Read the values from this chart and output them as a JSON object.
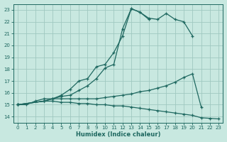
{
  "xlabel": "Humidex (Indice chaleur)",
  "bg_color": "#c8e8e0",
  "grid_color": "#a0c8c0",
  "line_color": "#1e6860",
  "xlim": [
    -0.5,
    23.5
  ],
  "ylim": [
    13.5,
    23.5
  ],
  "yticks": [
    14,
    15,
    16,
    17,
    18,
    19,
    20,
    21,
    22,
    23
  ],
  "xticks": [
    0,
    1,
    2,
    3,
    4,
    5,
    6,
    7,
    8,
    9,
    10,
    11,
    12,
    13,
    14,
    15,
    16,
    17,
    18,
    19,
    20,
    21,
    22,
    23
  ],
  "lines": [
    {
      "x": [
        0,
        1,
        2,
        3,
        4,
        5,
        6,
        7,
        8,
        9,
        10,
        11,
        12,
        13,
        14,
        15,
        16,
        17,
        18,
        19,
        20
      ],
      "y": [
        15,
        15,
        15.3,
        15.5,
        15.5,
        15.8,
        16.3,
        17.0,
        17.2,
        18.2,
        18.4,
        19.4,
        20.8,
        23.1,
        22.8,
        22.3,
        22.2,
        22.7,
        22.2,
        22.0,
        20.8
      ]
    },
    {
      "x": [
        0,
        3,
        4,
        5,
        6,
        7,
        8,
        9,
        10,
        11,
        12,
        13,
        14,
        15
      ],
      "y": [
        15,
        15.3,
        15.5,
        15.7,
        15.8,
        16.2,
        16.6,
        17.2,
        18.1,
        18.4,
        21.4,
        23.1,
        22.8,
        22.2
      ]
    },
    {
      "x": [
        0,
        3,
        4,
        5,
        6,
        7,
        8,
        9,
        10,
        11,
        12,
        13,
        14,
        15,
        16,
        17,
        18,
        19,
        20,
        21
      ],
      "y": [
        15,
        15.3,
        15.5,
        15.5,
        15.5,
        15.5,
        15.5,
        15.5,
        15.6,
        15.7,
        15.8,
        15.9,
        16.1,
        16.2,
        16.4,
        16.6,
        16.9,
        17.3,
        17.6,
        14.8
      ]
    },
    {
      "x": [
        0,
        3,
        4,
        5,
        6,
        7,
        8,
        9,
        10,
        11,
        12,
        13,
        14,
        15,
        16,
        17,
        18,
        19,
        20,
        21,
        22,
        23
      ],
      "y": [
        15,
        15.3,
        15.3,
        15.2,
        15.2,
        15.1,
        15.1,
        15.0,
        15.0,
        14.9,
        14.9,
        14.8,
        14.7,
        14.6,
        14.5,
        14.4,
        14.3,
        14.2,
        14.1,
        13.9,
        13.85,
        13.8
      ]
    }
  ]
}
